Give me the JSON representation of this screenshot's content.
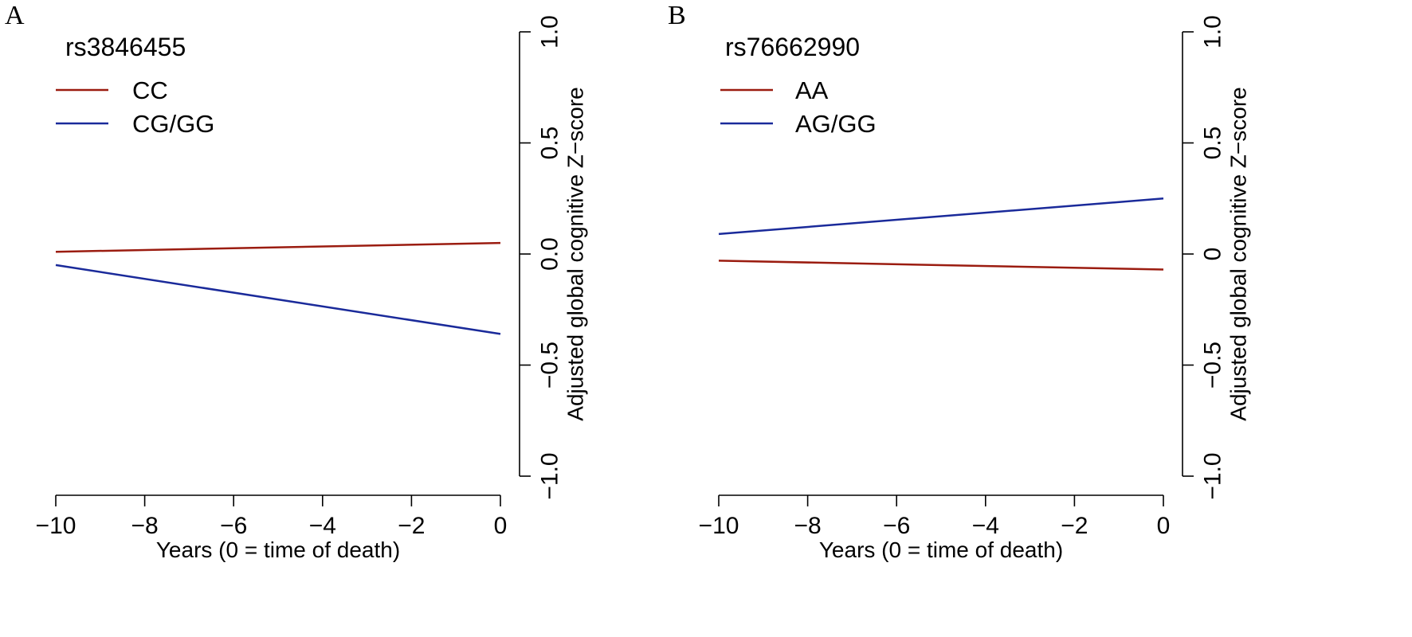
{
  "chart_data": [
    {
      "type": "line",
      "panel_label": "A",
      "title": "rs3846455",
      "xlabel": "Years (0 = time of death)",
      "ylabel": "Adjusted global cognitive Z−score",
      "xlim": [
        -10,
        0
      ],
      "ylim": [
        -1.0,
        1.0
      ],
      "x_ticks": [
        -10,
        -8,
        -6,
        -4,
        -2,
        0
      ],
      "x_tick_labels": [
        "−10",
        "−8",
        "−6",
        "−4",
        "−2",
        "0"
      ],
      "y_ticks": [
        -1.0,
        -0.5,
        0.0,
        0.5,
        1.0
      ],
      "y_tick_labels": [
        "−1.0",
        "−0.5",
        "0.0",
        "0.5",
        "1.0"
      ],
      "y_axis_side": "right",
      "grid": false,
      "legend_position": "top-left",
      "series": [
        {
          "name": "CC",
          "color": "#9b1c10",
          "x": [
            -10,
            0
          ],
          "y": [
            0.01,
            0.05
          ]
        },
        {
          "name": "CG/GG",
          "color": "#1a2a9a",
          "x": [
            -10,
            0
          ],
          "y": [
            -0.05,
            -0.36
          ]
        }
      ]
    },
    {
      "type": "line",
      "panel_label": "B",
      "title": "rs76662990",
      "xlabel": "Years (0 = time of death)",
      "ylabel": "Adjusted global cognitive Z−score",
      "xlim": [
        -10,
        0
      ],
      "ylim": [
        -1.0,
        1.0
      ],
      "x_ticks": [
        -10,
        -8,
        -6,
        -4,
        -2,
        0
      ],
      "x_tick_labels": [
        "−10",
        "−8",
        "−6",
        "−4",
        "−2",
        "0"
      ],
      "y_ticks": [
        -1.0,
        -0.5,
        0.0,
        0.5,
        1.0
      ],
      "y_tick_labels": [
        "−1.0",
        "−0.5",
        "0",
        "0.5",
        "1.0"
      ],
      "y_axis_side": "right",
      "grid": false,
      "legend_position": "top-left",
      "series": [
        {
          "name": "AA",
          "color": "#9b1c10",
          "x": [
            -10,
            0
          ],
          "y": [
            -0.03,
            -0.07
          ]
        },
        {
          "name": "AG/GG",
          "color": "#1a2a9a",
          "x": [
            -10,
            0
          ],
          "y": [
            0.09,
            0.25
          ]
        }
      ]
    }
  ]
}
